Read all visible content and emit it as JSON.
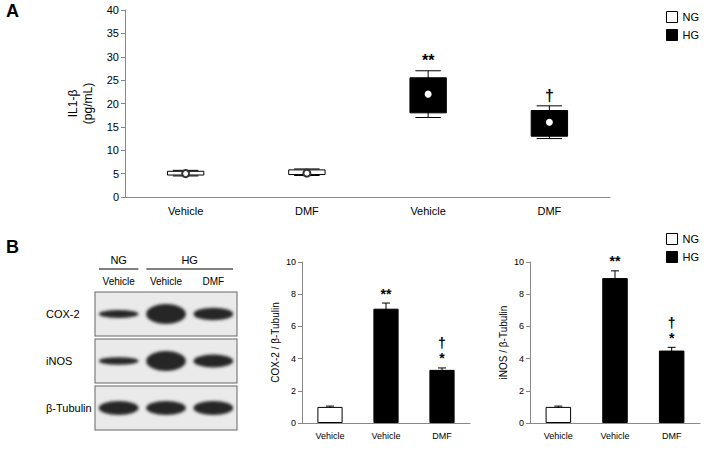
{
  "panel_labels": [
    "A",
    "B"
  ],
  "chart_data": [
    {
      "type": "boxplot",
      "y_label": "IL1-β\n(pg/mL)",
      "categories": [
        "Vehicle",
        "DMF",
        "Vehicle",
        "DMF"
      ],
      "ylim": [
        0,
        40
      ],
      "yticks": [
        0,
        5,
        10,
        15,
        20,
        25,
        30,
        35,
        40
      ],
      "grid": false,
      "legend": "top-right",
      "marker": "circle",
      "series": [
        {
          "name": "NG",
          "color": "#ffffff",
          "values": [
            [
              4.5,
              4.7,
              5.0,
              5.5,
              5.7
            ],
            [
              4.6,
              4.8,
              5.1,
              5.8,
              6.0
            ],
            null,
            null
          ]
        },
        {
          "name": "HG",
          "color": "#000000",
          "values": [
            null,
            null,
            [
              17,
              18,
              22,
              25.5,
              27
            ],
            [
              12.5,
              13,
              16,
              18.5,
              19.5
            ]
          ]
        }
      ],
      "annotations": [
        {
          "at": 2,
          "text": "**"
        },
        {
          "at": 3,
          "text": "†"
        }
      ]
    },
    {
      "type": "bar",
      "y_label": "COX-2 / β-Tubulin",
      "categories": [
        "Vehicle",
        "Vehicle",
        "DMF"
      ],
      "ylim": [
        0,
        10
      ],
      "yticks": [
        0,
        2,
        4,
        6,
        8,
        10
      ],
      "grid": false,
      "series": [
        {
          "name": "NG",
          "color": "#ffffff",
          "values": [
            1.0,
            null,
            null
          ],
          "errors": [
            0.05,
            null,
            null
          ]
        },
        {
          "name": "HG",
          "color": "#000000",
          "values": [
            null,
            7.1,
            3.3
          ],
          "errors": [
            null,
            0.35,
            0.12
          ]
        }
      ],
      "annotations": [
        {
          "at": 1,
          "text": "**"
        },
        {
          "at": 2,
          "text": "†"
        },
        {
          "at": 2,
          "text": "*"
        }
      ]
    },
    {
      "type": "bar",
      "y_label": "iNOS / β-Tubulin",
      "categories": [
        "Vehicle",
        "Vehicle",
        "DMF"
      ],
      "ylim": [
        0,
        10
      ],
      "yticks": [
        0,
        2,
        4,
        6,
        8,
        10
      ],
      "grid": false,
      "legend": "top-right",
      "series": [
        {
          "name": "NG",
          "color": "#ffffff",
          "values": [
            1.0,
            null,
            null
          ],
          "errors": [
            0.05,
            null,
            null
          ]
        },
        {
          "name": "HG",
          "color": "#000000",
          "values": [
            null,
            9.0,
            4.5
          ],
          "errors": [
            null,
            0.45,
            0.2
          ]
        }
      ],
      "annotations": [
        {
          "at": 1,
          "text": "**"
        },
        {
          "at": 2,
          "text": "†"
        },
        {
          "at": 2,
          "text": "*"
        }
      ]
    }
  ],
  "blot": {
    "groups": [
      {
        "label": "NG",
        "lanes": [
          "Vehicle"
        ]
      },
      {
        "label": "HG",
        "lanes": [
          "Vehicle",
          "DMF"
        ]
      }
    ],
    "rows": [
      "COX-2",
      "iNOS",
      "β-Tubulin"
    ]
  }
}
